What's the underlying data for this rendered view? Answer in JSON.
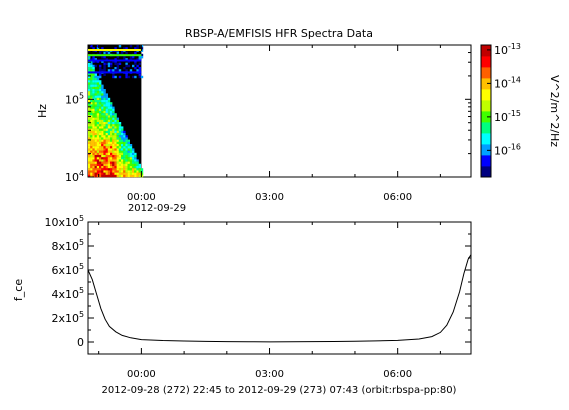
{
  "chart_data": [
    {
      "type": "heatmap",
      "title": "RBSP-A/EMFISIS  HFR Spectra Data",
      "ylabel": "Hz",
      "colorbar_label": "V^2/m^2/Hz",
      "yscale": "log",
      "ylim": [
        10000,
        500000
      ],
      "ytick_labels": [
        "10^4",
        "10^5"
      ],
      "xtick_labels": [
        "00:00",
        "03:00",
        "06:00"
      ],
      "xtick_date": "2012-09-29",
      "colorbar_scale": "log",
      "colorbar_range": [
        1.6e-17,
        1.4e-13
      ],
      "colorbar_ticks": [
        "10^-13",
        "10^-14",
        "10^-15",
        "10^-16"
      ],
      "colormap": [
        "#000080",
        "#0000ff",
        "#00a0ff",
        "#00ffff",
        "#00ff80",
        "#40ff00",
        "#c0ff00",
        "#ffff00",
        "#ffc000",
        "#ff6000",
        "#ff0000",
        "#c00000"
      ],
      "data_extent_x": [
        "22:45",
        "00:00"
      ],
      "background_color": "#000000"
    },
    {
      "type": "line",
      "ylabel": "f_ce",
      "xlabel": "2012-09-28 (272) 22:45 to 2012-09-29 (273) 07:43 (orbit:rbspa-pp:80)",
      "ylim": [
        -100000,
        1000000
      ],
      "ytick_labels": [
        "0",
        "2x10^5",
        "4x10^5",
        "6x10^5",
        "8x10^5",
        "10x10^5"
      ],
      "xtick_labels": [
        "00:00",
        "03:00",
        "06:00"
      ],
      "x_hours": [
        -1.25,
        -1.15,
        -1.05,
        -0.95,
        -0.85,
        -0.75,
        -0.6,
        -0.45,
        -0.25,
        0,
        0.5,
        1,
        1.5,
        2,
        2.5,
        3,
        3.5,
        4,
        4.5,
        5,
        5.5,
        6,
        6.5,
        6.8,
        7.0,
        7.15,
        7.3,
        7.45,
        7.55,
        7.65,
        7.72
      ],
      "values": [
        600000,
        520000,
        400000,
        280000,
        190000,
        130000,
        85000,
        55000,
        35000,
        20000,
        12000,
        8000,
        5000,
        3000,
        2000,
        1500,
        2000,
        3000,
        4000,
        6000,
        9000,
        14000,
        25000,
        45000,
        80000,
        140000,
        250000,
        420000,
        570000,
        690000,
        730000
      ]
    }
  ]
}
